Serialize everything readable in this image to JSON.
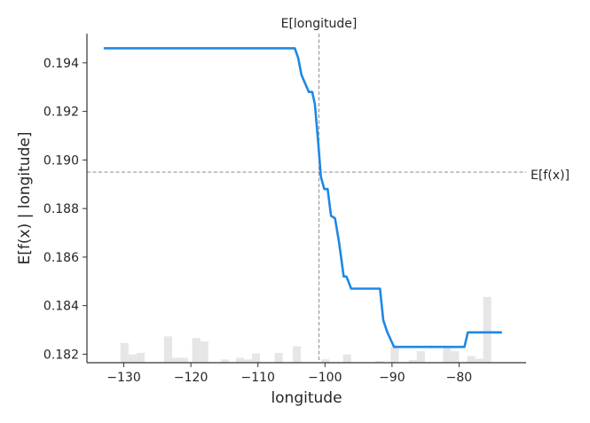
{
  "chart_data": {
    "type": "line",
    "xlabel": "longitude",
    "ylabel": "E[f(x) | longitude]",
    "xlim": [
      -135.5,
      -70
    ],
    "ylim": [
      0.18165,
      0.1952
    ],
    "x_ticks": [
      -130,
      -120,
      -110,
      -100,
      -90,
      -80
    ],
    "x_tick_labels": [
      "−130",
      "−120",
      "−110",
      "−100",
      "−90",
      "−80"
    ],
    "y_ticks": [
      0.182,
      0.184,
      0.186,
      0.188,
      0.19,
      0.192,
      0.194
    ],
    "y_tick_labels": [
      "0.182",
      "0.184",
      "0.186",
      "0.188",
      "0.190",
      "0.192",
      "0.194"
    ],
    "grid": false,
    "expected_value_line": {
      "label": "E[f(x)]",
      "y": 0.1895
    },
    "expected_feature_line": {
      "label": "E[longitude]",
      "x": -100.9
    },
    "line_color": "#1E88E5",
    "reference_line_color": "#999999",
    "histogram_color": "#e6e6e6",
    "series": [
      {
        "x": [
          -133,
          -126,
          -120,
          -114,
          -108,
          -104.5,
          -104,
          -103.5,
          -102.4,
          -101.9,
          -101.5,
          -101.0,
          -100.6,
          -100.1,
          -99.6,
          -99.1,
          -98.5,
          -97.9,
          -97.2,
          -96.8,
          -96.1,
          -95.6,
          -95.0,
          -91.8,
          -91.3,
          -90.7,
          -89.7,
          -85,
          -80,
          -79.2,
          -78.7,
          -73.6
        ],
        "y": [
          0.1946,
          0.1946,
          0.1946,
          0.1946,
          0.1946,
          0.1946,
          0.1942,
          0.1935,
          0.1928,
          0.1928,
          0.1923,
          0.1907,
          0.1893,
          0.1888,
          0.1888,
          0.1877,
          0.1876,
          0.1866,
          0.1852,
          0.1852,
          0.1847,
          0.1847,
          0.1847,
          0.1847,
          0.1834,
          0.1829,
          0.1823,
          0.1823,
          0.1823,
          0.1823,
          0.1829,
          0.1829
        ]
      }
    ],
    "histogram": [
      {
        "x0": -130.5,
        "x1": -129.3,
        "h": 0.06
      },
      {
        "x0": -129.3,
        "x1": -128.1,
        "h": 0.025
      },
      {
        "x0": -128.1,
        "x1": -126.9,
        "h": 0.03
      },
      {
        "x0": -124,
        "x1": -122.8,
        "h": 0.08
      },
      {
        "x0": -122.8,
        "x1": -121.6,
        "h": 0.015
      },
      {
        "x0": -121.6,
        "x1": -120.4,
        "h": 0.015
      },
      {
        "x0": -119.8,
        "x1": -118.6,
        "h": 0.075
      },
      {
        "x0": -118.6,
        "x1": -117.4,
        "h": 0.065
      },
      {
        "x0": -115.5,
        "x1": -114.3,
        "h": 0.01
      },
      {
        "x0": -113.3,
        "x1": -112.1,
        "h": 0.015
      },
      {
        "x0": -112.1,
        "x1": -110.9,
        "h": 0.01
      },
      {
        "x0": -110.9,
        "x1": -109.7,
        "h": 0.028
      },
      {
        "x0": -107.5,
        "x1": -106.3,
        "h": 0.03
      },
      {
        "x0": -104.8,
        "x1": -103.6,
        "h": 0.05
      },
      {
        "x0": -100.5,
        "x1": -99.3,
        "h": 0.01
      },
      {
        "x0": -97.3,
        "x1": -96.1,
        "h": 0.025
      },
      {
        "x0": -92.5,
        "x1": -91.3,
        "h": 0.005
      },
      {
        "x0": -90.2,
        "x1": -89,
        "h": 0.05
      },
      {
        "x0": -87.5,
        "x1": -86.3,
        "h": 0.008
      },
      {
        "x0": -86.3,
        "x1": -85.1,
        "h": 0.035
      },
      {
        "x0": -82.4,
        "x1": -81.2,
        "h": 0.045
      },
      {
        "x0": -81.2,
        "x1": -80,
        "h": 0.035
      },
      {
        "x0": -78.8,
        "x1": -77.6,
        "h": 0.02
      },
      {
        "x0": -77.6,
        "x1": -76.4,
        "h": 0.012
      },
      {
        "x0": -76.4,
        "x1": -75.2,
        "h": 0.2
      }
    ]
  }
}
